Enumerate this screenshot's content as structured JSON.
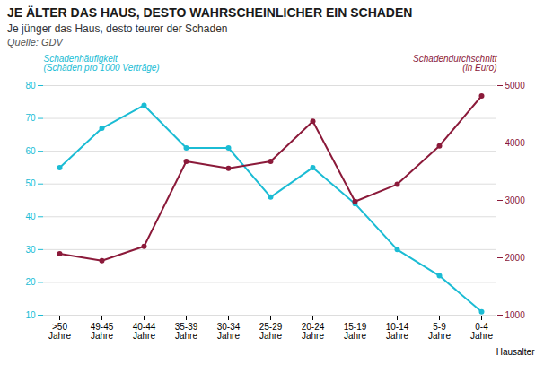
{
  "chart_data": {
    "type": "line",
    "title": "JE ÄLTER DAS HAUS, DESTO WAHRSCHEINLICHER EIN SCHADEN",
    "subtitle": "Je jünger das Haus, desto teurer der Schaden",
    "source": "Quelle: GDV",
    "xlabel": "Hausalter",
    "categories": [
      ">50\nJahre",
      "49-45\nJahre",
      "40-44\nJahre",
      "35-39\nJahre",
      "30-34\nJahre",
      "25-29\nJahre",
      "20-24\nJahre",
      "15-19\nJahre",
      "10-14\nJahre",
      "5-9\nJahre",
      "0-4\nJahre"
    ],
    "series": [
      {
        "name": "Schadenhäufigkeit\n(Schäden pro 1000 Verträge)",
        "color": "#1BBCD4",
        "marker": "o",
        "values": [
          55,
          67,
          74,
          61,
          61,
          46,
          55,
          44,
          30,
          22,
          11
        ]
      },
      {
        "name": "Schadendurchschnitt\n(in Euro)",
        "color": "#8B1A3A",
        "marker": "o",
        "axis": "y2",
        "values": [
          2070,
          1950,
          2200,
          3680,
          3560,
          3680,
          4380,
          2980,
          3280,
          3950,
          4820
        ]
      }
    ],
    "ylim": [
      10,
      80
    ],
    "yticks": [
      10,
      20,
      30,
      40,
      50,
      60,
      70,
      80
    ],
    "y2lim": [
      1000,
      5000
    ],
    "y2ticks": [
      1000,
      2000,
      3000,
      4000,
      5000
    ],
    "grid": true
  }
}
